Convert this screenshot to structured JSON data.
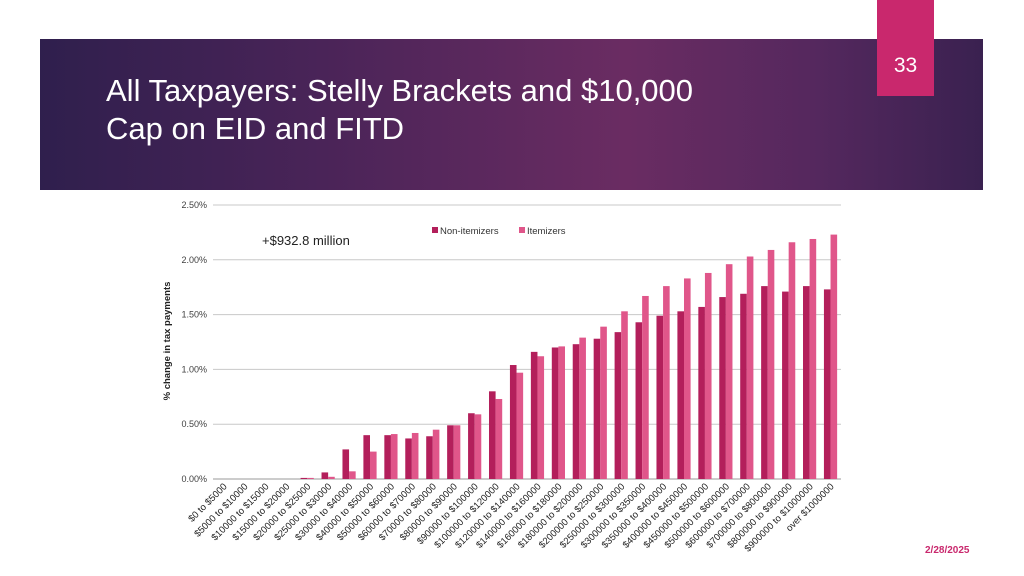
{
  "slide": {
    "title_line1": "All Taxpayers: Stelly Brackets and $10,000",
    "title_line2": "Cap on EID and FITD",
    "page_number": "33",
    "date": "2/28/2025"
  },
  "colors": {
    "accent": "#c9286d",
    "non_itemizers": "#b31f5b",
    "itemizers": "#e0568a"
  },
  "chart_data": {
    "type": "bar",
    "title": "",
    "xlabel": "",
    "ylabel": "% change in tax payments",
    "ylim": [
      0,
      0.025
    ],
    "y_ticks": [
      "0.00%",
      "0.50%",
      "1.00%",
      "1.50%",
      "2.00%",
      "2.50%"
    ],
    "y_tick_values": [
      0,
      0.005,
      0.01,
      0.015,
      0.02,
      0.025
    ],
    "annotation": "+$932.8 million",
    "legend": [
      "Non-itemizers",
      "Itemizers"
    ],
    "categories": [
      "$0 to $5000",
      "$5000 to $10000",
      "$10000 to $15000",
      "$15000 to $20000",
      "$20000 to $25000",
      "$25000 to $30000",
      "$30000 to $40000",
      "$40000 to $50000",
      "$50000 to $60000",
      "$60000 to $70000",
      "$70000 to $80000",
      "$80000 to $90000",
      "$90000 to $100000",
      "$100000 to $120000",
      "$120000 to $140000",
      "$140000 to $160000",
      "$160000 to $180000",
      "$180000 to $200000",
      "$200000 to $250000",
      "$250000 to $300000",
      "$300000 to $350000",
      "$350000 to $400000",
      "$400000 to $450000",
      "$450000 to $500000",
      "$500000 to $600000",
      "$600000 to $700000",
      "$700000 to $800000",
      "$800000 to $900000",
      "$900000 to $1000000",
      "over $1000000"
    ],
    "series": [
      {
        "name": "Non-itemizers",
        "values": [
          0,
          0,
          0,
          0,
          0.0001,
          0.0006,
          0.0027,
          0.004,
          0.004,
          0.0037,
          0.0039,
          0.0049,
          0.006,
          0.008,
          0.0104,
          0.0116,
          0.012,
          0.0123,
          0.0128,
          0.0134,
          0.0143,
          0.0149,
          0.0153,
          0.0157,
          0.0166,
          0.0169,
          0.0176,
          0.0171,
          0.0176,
          0.0173
        ]
      },
      {
        "name": "Itemizers",
        "values": [
          0,
          0,
          0,
          0,
          0.0001,
          0.0002,
          0.0007,
          0.0025,
          0.0041,
          0.0042,
          0.0045,
          0.0049,
          0.0059,
          0.0073,
          0.0097,
          0.0112,
          0.0121,
          0.0129,
          0.0139,
          0.0153,
          0.0167,
          0.0176,
          0.0183,
          0.0188,
          0.0196,
          0.0203,
          0.0209,
          0.0216,
          0.0219,
          0.0223
        ]
      }
    ]
  }
}
